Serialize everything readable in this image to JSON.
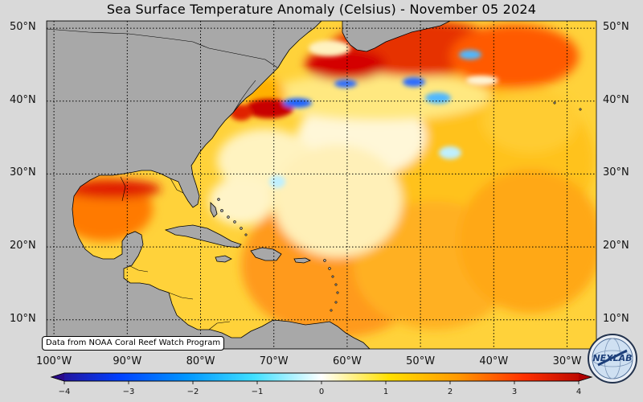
{
  "title": "Sea Surface Temperature Anomaly (Celsius) - November 05 2024",
  "credit": "Data from NOAA Coral Reef Watch Program",
  "logo": {
    "icon": "nexlab-globe-logo",
    "text": "NEXLAB"
  },
  "map": {
    "projection": "equirectangular",
    "lon_range": [
      -101,
      -26
    ],
    "lat_range": [
      6,
      51
    ],
    "grid": "dotted",
    "land_color": "#a8a8a8",
    "coastline_color": "#000000"
  },
  "lat_labels_left": [
    "50°N",
    "40°N",
    "30°N",
    "20°N",
    "10°N"
  ],
  "lat_labels_right": [
    "50°N",
    "40°N",
    "30°N",
    "20°N",
    "10°N"
  ],
  "lon_labels": [
    "100°W",
    "90°W",
    "80°W",
    "70°W",
    "60°W",
    "50°W",
    "40°W",
    "30°W"
  ],
  "colorbar": {
    "ticks": [
      "−4",
      "−3",
      "−2",
      "−1",
      "0",
      "1",
      "2",
      "3",
      "4"
    ],
    "range": [
      -4,
      4
    ],
    "colors": [
      "#2a0a8a",
      "#0040ff",
      "#0096ff",
      "#40e0ff",
      "#ffffff",
      "#ffe000",
      "#ff9a00",
      "#ff3000",
      "#b00000"
    ]
  }
}
